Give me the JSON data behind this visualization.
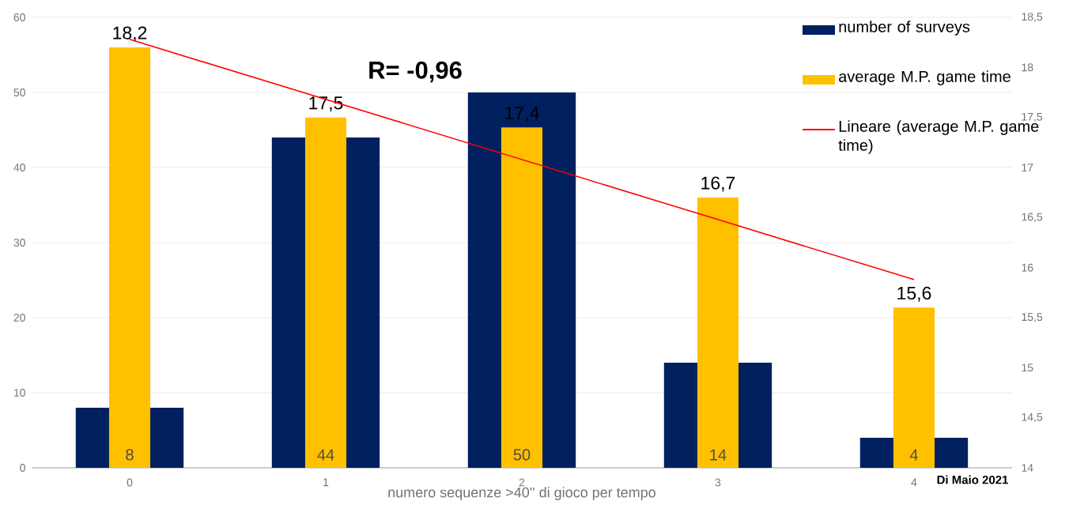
{
  "chart_data": {
    "type": "bar",
    "categories": [
      "0",
      "1",
      "2",
      "3",
      "4"
    ],
    "xlabel": "numero sequenze  >40'' di gioco per tempo",
    "series": [
      {
        "name": "number of surveys",
        "color": "#002060",
        "values": [
          8,
          44,
          50,
          14,
          4
        ],
        "value_labels": [
          "8",
          "44",
          "50",
          "14",
          "4"
        ]
      },
      {
        "name": "average M.P. game time",
        "color": "#ffc000",
        "axis": "y2",
        "values": [
          18.2,
          17.5,
          17.4,
          16.7,
          15.6
        ],
        "value_labels": [
          "18,2",
          "17,5",
          "17,4",
          "16,7",
          "15,6"
        ]
      },
      {
        "name": "Lineare (average M.P. game time)",
        "type": "line",
        "color": "#ff0000",
        "axis": "y2",
        "values": [
          18.28,
          17.68,
          17.08,
          16.48,
          15.88
        ]
      }
    ],
    "ylim": [
      0,
      60
    ],
    "yticks": [
      0,
      10,
      20,
      30,
      40,
      50,
      60
    ],
    "y2lim": [
      14,
      18.5
    ],
    "y2ticks": [
      14,
      {
        "value": 14.5,
        "label": "14,5"
      },
      15,
      {
        "value": 15.5,
        "label": "15,5"
      },
      16,
      {
        "value": 16.5,
        "label": "16,5"
      },
      17,
      {
        "value": 17.5,
        "label": "17,5"
      },
      18,
      {
        "value": 18.5,
        "label": "18,5"
      }
    ],
    "grid": "y",
    "legend": "top right",
    "annotations": [
      "R= -0,96",
      "Di Maio 2021"
    ]
  }
}
